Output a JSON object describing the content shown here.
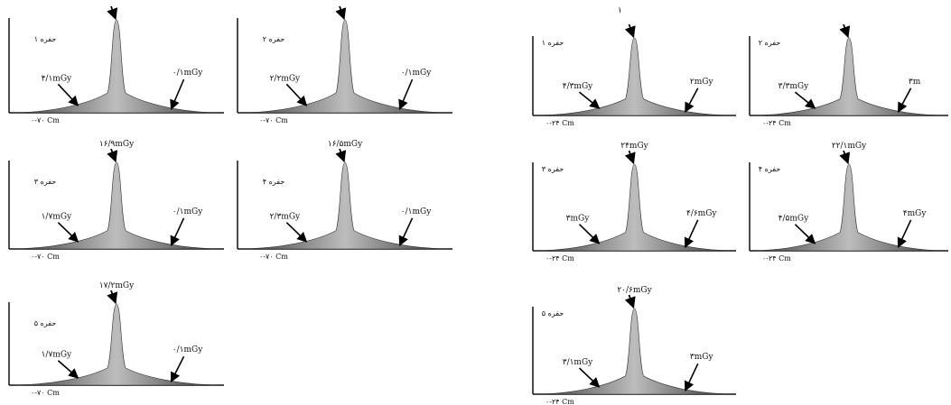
{
  "figure_note": "۱",
  "chart_data": [
    {
      "type": "area",
      "group": "left",
      "label": "حفره ۱",
      "xrange": "۰-۷۰ Cm",
      "peak": "",
      "left": "۴/۱mGy",
      "right": "۰/۱mGy"
    },
    {
      "type": "area",
      "group": "left",
      "label": "حفره ۲",
      "xrange": "۰-۷۰ Cm",
      "peak": "",
      "left": "۲/۲mGy",
      "right": "۰/۱mGy"
    },
    {
      "type": "area",
      "group": "left",
      "label": "حفره ۳",
      "xrange": "۰-۷۰ Cm",
      "peak": "۱۶/۹mGy",
      "left": "۱/۷mGy",
      "right": "۰/۱mGy"
    },
    {
      "type": "area",
      "group": "left",
      "label": "حفره ۴",
      "xrange": "۰-۷۰ Cm",
      "peak": "۱۶/۵mGy",
      "left": "۲/۳mGy",
      "right": "۰/۱mGy"
    },
    {
      "type": "area",
      "group": "left",
      "label": "حفره ۵",
      "xrange": "۰-۷۰ Cm",
      "peak": "۱۷/۲mGy",
      "left": "۱/۷mGy",
      "right": "۰/۱mGy"
    },
    {
      "type": "area",
      "group": "right",
      "label": "حفره ۱",
      "xrange": "۰-۲۴ Cm",
      "peak": "",
      "left": "۴/۳mGy",
      "right": "۲mGy"
    },
    {
      "type": "area",
      "group": "right",
      "label": "حفره ۲",
      "xrange": "۰-۲۴ Cm",
      "peak": "",
      "left": "۳/۳mGy",
      "right": "۳m"
    },
    {
      "type": "area",
      "group": "right",
      "label": "حفره ۳",
      "xrange": "۰-۲۴ Cm",
      "peak": "۲۴mGy",
      "left": "۳mGy",
      "right": "۴/۶mGy"
    },
    {
      "type": "area",
      "group": "right",
      "label": "حفره ۴",
      "xrange": "۰-۲۴ Cm",
      "peak": "۲۲/۱mGy",
      "left": "۴/۵mGy",
      "right": "۴mGy"
    },
    {
      "type": "area",
      "group": "right",
      "label": "حفره ۵",
      "xrange": "۰-۲۴ Cm",
      "peak": "۲۰/۶mGy",
      "left": "۳/۱mGy",
      "right": "۳mGy"
    }
  ]
}
